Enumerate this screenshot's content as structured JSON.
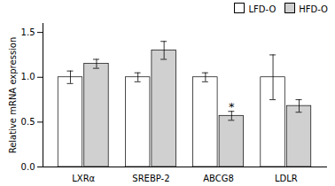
{
  "chart_data": {
    "type": "bar",
    "categories": [
      "LXRα",
      "SREBP-2",
      "ABCG8",
      "LDLR"
    ],
    "series": [
      {
        "name": "LFD-O",
        "color": "#ffffff",
        "values": [
          1.0,
          1.0,
          1.0,
          1.0
        ],
        "errors": [
          0.07,
          0.05,
          0.05,
          0.25
        ]
      },
      {
        "name": "HFD-O",
        "color": "#d0d0d0",
        "values": [
          1.15,
          1.3,
          0.57,
          0.68
        ],
        "errors": [
          0.05,
          0.1,
          0.05,
          0.07
        ]
      }
    ],
    "ylabel": "Relative mRNA expression",
    "ylim": [
      0,
      1.6
    ],
    "yticks": [
      {
        "value": 0,
        "label": "0.0"
      },
      0.5,
      {
        "value": 1.0,
        "label": "1.0"
      },
      1.5
    ],
    "legend": "upper right",
    "annotations": [
      {
        "text": "*",
        "category": "ABCG8",
        "series": "HFD-O"
      }
    ]
  }
}
